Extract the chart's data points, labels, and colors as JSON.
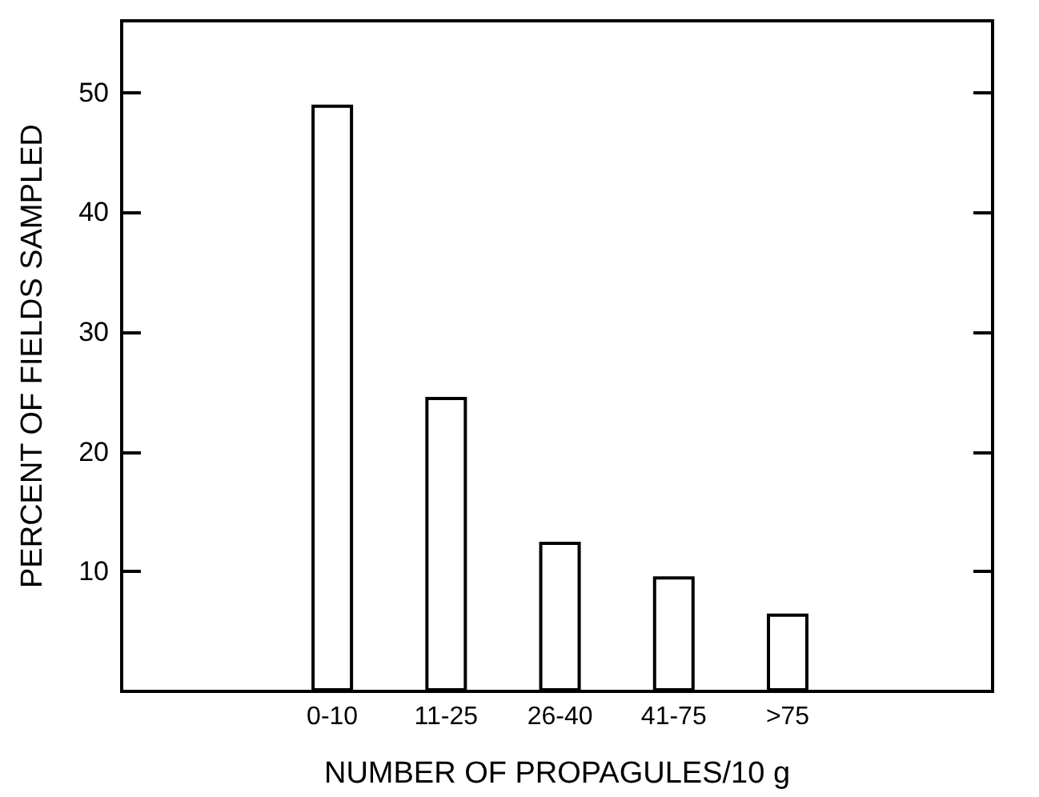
{
  "chart_data": {
    "type": "bar",
    "xlabel": "NUMBER OF PROPAGULES/10 g",
    "ylabel": "PERCENT OF FIELDS SAMPLED",
    "categories": [
      "0-10",
      "11-25",
      "26-40",
      "41-75",
      ">75"
    ],
    "values": [
      49,
      24.6,
      12.5,
      9.6,
      6.5
    ],
    "color": "#ffffff",
    "ylim": [
      0,
      56
    ],
    "yticks": [
      10,
      20,
      30,
      40,
      50
    ],
    "grid": false
  }
}
